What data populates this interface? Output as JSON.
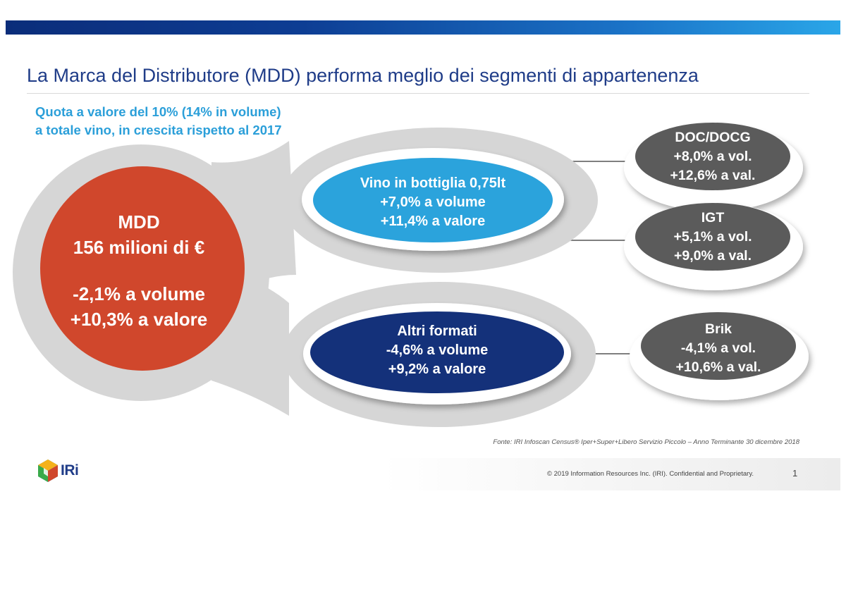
{
  "title": "La Marca del Distributore (MDD) performa meglio dei segmenti di appartenenza",
  "subtitle": {
    "line1": "Quota a valore del 10% (14% in volume)",
    "line2": "a totale vino, in crescita rispetto al 2017"
  },
  "mdd": {
    "label": "MDD",
    "value": "156 milioni di €",
    "volume": "-2,1% a volume",
    "valore": "+10,3% a valore",
    "color": "#d0472c"
  },
  "segments": [
    {
      "name": "Vino in bottiglia 0,75lt",
      "volume": "+7,0% a volume",
      "valore": "+11,4% a valore",
      "color": "#2ba3dc"
    },
    {
      "name": "Altri formati",
      "volume": "-4,6% a volume",
      "valore": "+9,2% a valore",
      "color": "#14317a"
    }
  ],
  "subsegments": [
    {
      "name": "DOC/DOCG",
      "vol": "+8,0% a vol.",
      "val": "+12,6% a val.",
      "color": "#5b5b5b"
    },
    {
      "name": "IGT",
      "vol": "+5,1% a vol.",
      "val": "+9,0% a val.",
      "color": "#5b5b5b"
    },
    {
      "name": "Brik",
      "vol": "-4,1% a vol.",
      "val": "+10,6% a val.",
      "color": "#5b5b5b"
    }
  ],
  "source": "Fonte: IRI  Infoscan Census®  Iper+Super+Libero Servizio Piccolo – Anno Terminante 30 dicembre 2018",
  "footer": {
    "logo_text": "IRi",
    "copyright": "© 2019 Information Resources Inc. (IRI). Confidential and Proprietary.",
    "page_number": "1"
  }
}
